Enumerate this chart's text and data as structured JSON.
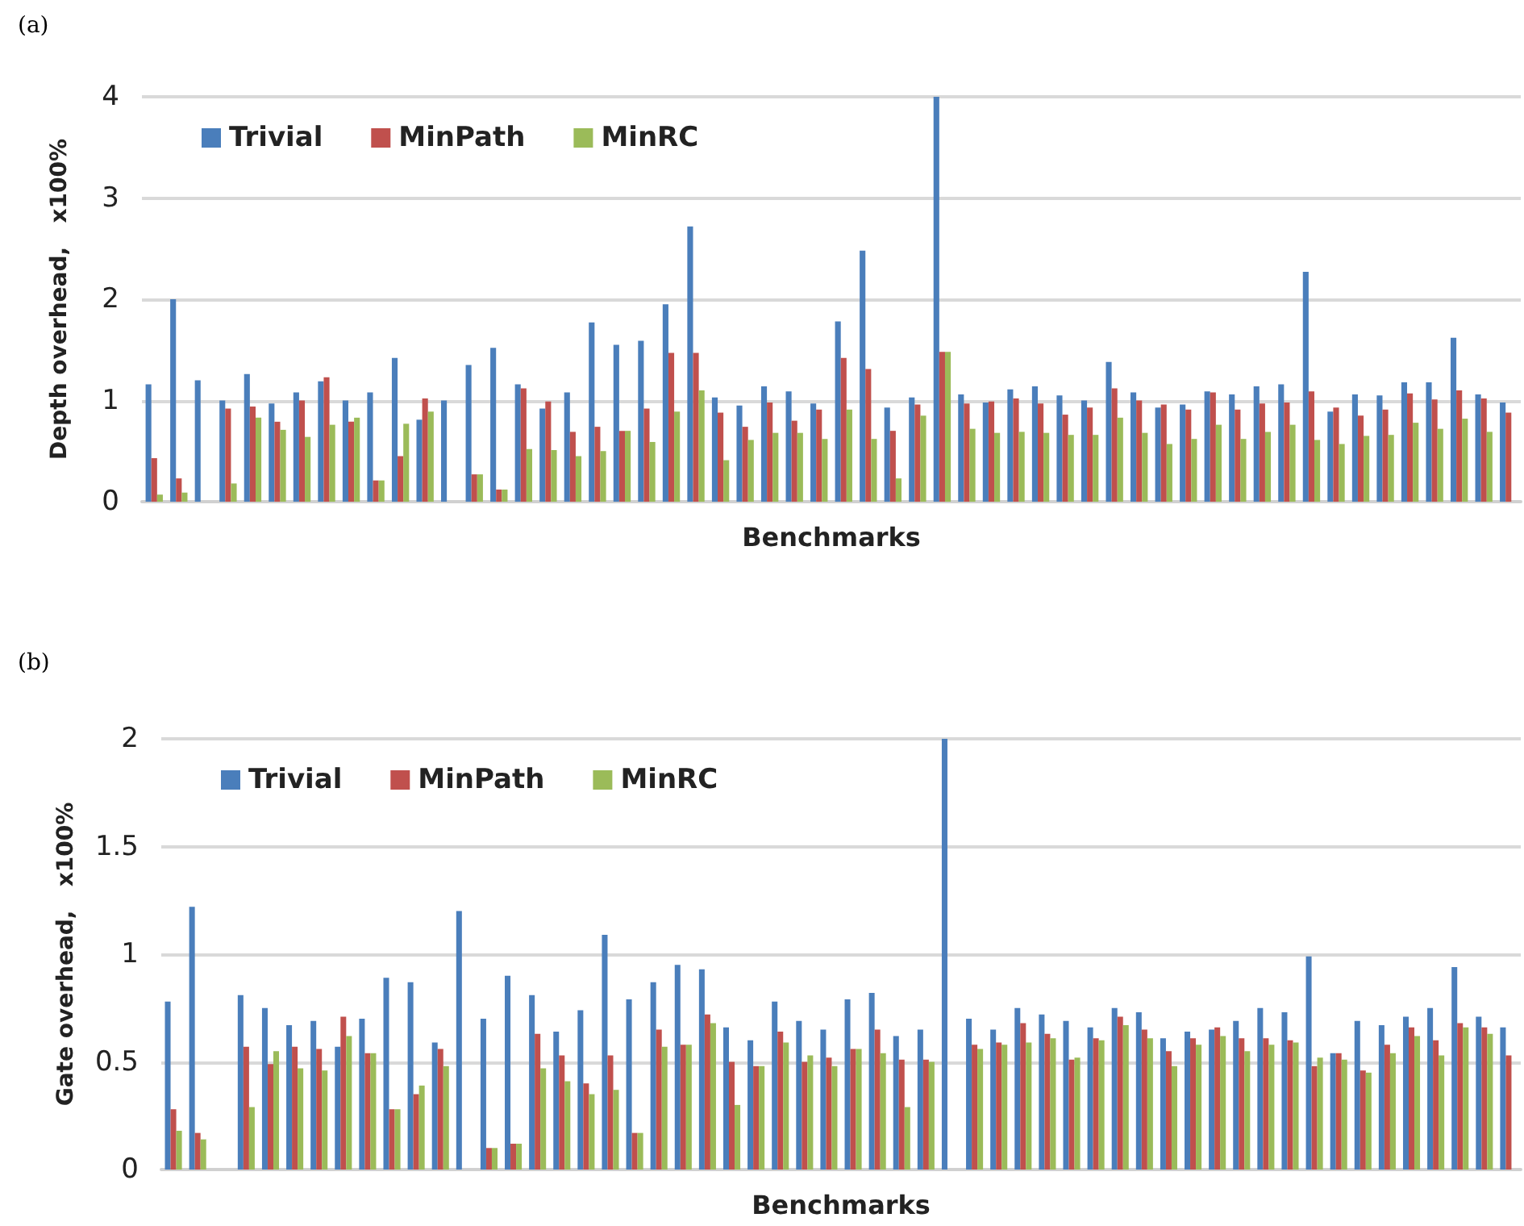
{
  "chart_data": [
    {
      "type": "bar",
      "title": "(a)",
      "xlabel": "Benchmarks",
      "ylabel": "Depth overhead,   x100%",
      "categories": [
        null,
        null,
        null,
        null,
        null,
        null,
        null,
        null,
        null,
        null,
        null,
        null,
        null,
        null,
        null,
        null,
        null,
        null,
        null,
        null,
        null,
        null,
        null,
        null,
        null,
        null,
        null,
        null,
        null,
        null,
        null,
        null,
        null,
        null,
        null,
        null,
        null,
        null,
        null,
        null,
        null,
        null,
        null,
        null,
        null,
        null,
        null,
        null,
        null,
        null,
        null,
        null,
        null,
        null,
        null,
        null
      ],
      "ylim": [
        0,
        4
      ],
      "yticks": [
        0,
        1,
        2,
        3,
        4
      ],
      "grid": "y",
      "legend": "top left",
      "series": [
        {
          "name": "Trivial",
          "color": "#4a7ebb",
          "values": [
            1.16,
            2.0,
            1.2,
            1.0,
            1.26,
            0.97,
            1.08,
            1.19,
            1.0,
            1.08,
            1.42,
            0.81,
            1.0,
            1.35,
            1.52,
            1.16,
            0.92,
            1.08,
            1.77,
            1.55,
            1.59,
            1.95,
            2.72,
            1.03,
            0.95,
            1.14,
            1.09,
            0.97,
            1.78,
            2.48,
            0.93,
            1.03,
            4.0,
            1.06,
            0.98,
            1.11,
            1.14,
            1.05,
            1.0,
            1.38,
            1.08,
            0.93,
            0.96,
            1.09,
            1.06,
            1.14,
            1.16,
            2.27,
            0.89,
            1.06,
            1.05,
            1.18,
            1.18,
            1.62,
            1.06,
            0.98
          ]
        },
        {
          "name": "MinPath",
          "color": "#c0504d",
          "values": [
            0.43,
            0.23,
            0,
            0.92,
            0.94,
            0.79,
            1.0,
            1.23,
            0.79,
            0.21,
            0.45,
            1.02,
            0,
            0.27,
            0.12,
            1.12,
            0.99,
            0.69,
            0.74,
            0.7,
            0.92,
            1.47,
            1.47,
            0.88,
            0.74,
            0.98,
            0.8,
            0.91,
            1.42,
            1.31,
            0.7,
            0.96,
            1.48,
            0.97,
            0.99,
            1.02,
            0.97,
            0.86,
            0.93,
            1.12,
            1.0,
            0.96,
            0.91,
            1.08,
            0.91,
            0.97,
            0.98,
            1.09,
            0.93,
            0.85,
            0.91,
            1.07,
            1.01,
            1.1,
            1.02,
            0.88
          ]
        },
        {
          "name": "MinRC",
          "color": "#9bbb59",
          "values": [
            0.07,
            0.09,
            0,
            0.18,
            0.83,
            0.71,
            0.64,
            0.76,
            0.83,
            0.21,
            0.77,
            0.89,
            0,
            0.27,
            0.12,
            0.52,
            0.51,
            0.45,
            0.5,
            0.7,
            0.59,
            0.89,
            1.1,
            0.41,
            0.61,
            0.68,
            0.68,
            0.62,
            0.91,
            0.62,
            0.23,
            0.85,
            1.48,
            0.72,
            0.68,
            0.69,
            0.68,
            0.66,
            0.66,
            0.83,
            0.68,
            0.57,
            0.62,
            0.76,
            0.62,
            0.69,
            0.76,
            0.61,
            0.57,
            0.65,
            0.66,
            0.78,
            0.72,
            0.82,
            0.69,
            null
          ]
        }
      ]
    },
    {
      "type": "bar",
      "title": "(b)",
      "xlabel": "Benchmarks",
      "ylabel": "Gate overhead,   x100%",
      "categories": [
        null,
        null,
        null,
        null,
        null,
        null,
        null,
        null,
        null,
        null,
        null,
        null,
        null,
        null,
        null,
        null,
        null,
        null,
        null,
        null,
        null,
        null,
        null,
        null,
        null,
        null,
        null,
        null,
        null,
        null,
        null,
        null,
        null,
        null,
        null,
        null,
        null,
        null,
        null,
        null,
        null,
        null,
        null,
        null,
        null,
        null,
        null,
        null,
        null,
        null,
        null,
        null,
        null,
        null,
        null,
        null
      ],
      "ylim": [
        0,
        2
      ],
      "yticks": [
        0,
        0.5,
        1,
        1.5,
        2
      ],
      "grid": "y",
      "legend": "top left",
      "series": [
        {
          "name": "Trivial",
          "color": "#4a7ebb",
          "values": [
            0.78,
            1.22,
            0,
            0.81,
            0.75,
            0.67,
            0.69,
            0.57,
            0.7,
            0.89,
            0.87,
            0.59,
            1.2,
            0.7,
            0.9,
            0.81,
            0.64,
            0.74,
            1.09,
            0.79,
            0.87,
            0.95,
            0.93,
            0.66,
            0.6,
            0.78,
            0.69,
            0.65,
            0.79,
            0.82,
            0.62,
            0.65,
            2.0,
            0.7,
            0.65,
            0.75,
            0.72,
            0.69,
            0.66,
            0.75,
            0.73,
            0.61,
            0.64,
            0.65,
            0.69,
            0.75,
            0.73,
            0.99,
            0.54,
            0.69,
            0.67,
            0.71,
            0.75,
            0.94,
            0.71,
            0.66
          ]
        },
        {
          "name": "MinPath",
          "color": "#c0504d",
          "values": [
            0.28,
            0.17,
            0,
            0.57,
            0.49,
            0.57,
            0.56,
            0.71,
            0.54,
            0.28,
            0.35,
            0.56,
            0,
            0.1,
            0.12,
            0.63,
            0.53,
            0.4,
            0.53,
            0.17,
            0.65,
            0.58,
            0.72,
            0.5,
            0.48,
            0.64,
            0.5,
            0.52,
            0.56,
            0.65,
            0.51,
            0.51,
            0,
            0.58,
            0.59,
            0.68,
            0.63,
            0.51,
            0.61,
            0.71,
            0.65,
            0.55,
            0.61,
            0.66,
            0.61,
            0.61,
            0.6,
            0.48,
            0.54,
            0.46,
            0.58,
            0.66,
            0.6,
            0.68,
            0.66,
            0.53
          ]
        },
        {
          "name": "MinRC",
          "color": "#9bbb59",
          "values": [
            0.18,
            0.14,
            0,
            0.29,
            0.55,
            0.47,
            0.46,
            0.62,
            0.54,
            0.28,
            0.39,
            0.48,
            0,
            0.1,
            0.12,
            0.47,
            0.41,
            0.35,
            0.37,
            0.17,
            0.57,
            0.58,
            0.68,
            0.3,
            0.48,
            0.59,
            0.53,
            0.48,
            0.56,
            0.54,
            0.29,
            0.5,
            0,
            0.56,
            0.58,
            0.59,
            0.61,
            0.52,
            0.6,
            0.67,
            0.61,
            0.48,
            0.58,
            0.62,
            0.55,
            0.58,
            0.59,
            0.52,
            0.51,
            0.45,
            0.54,
            0.62,
            0.53,
            0.66,
            0.63,
            null
          ]
        }
      ]
    }
  ]
}
